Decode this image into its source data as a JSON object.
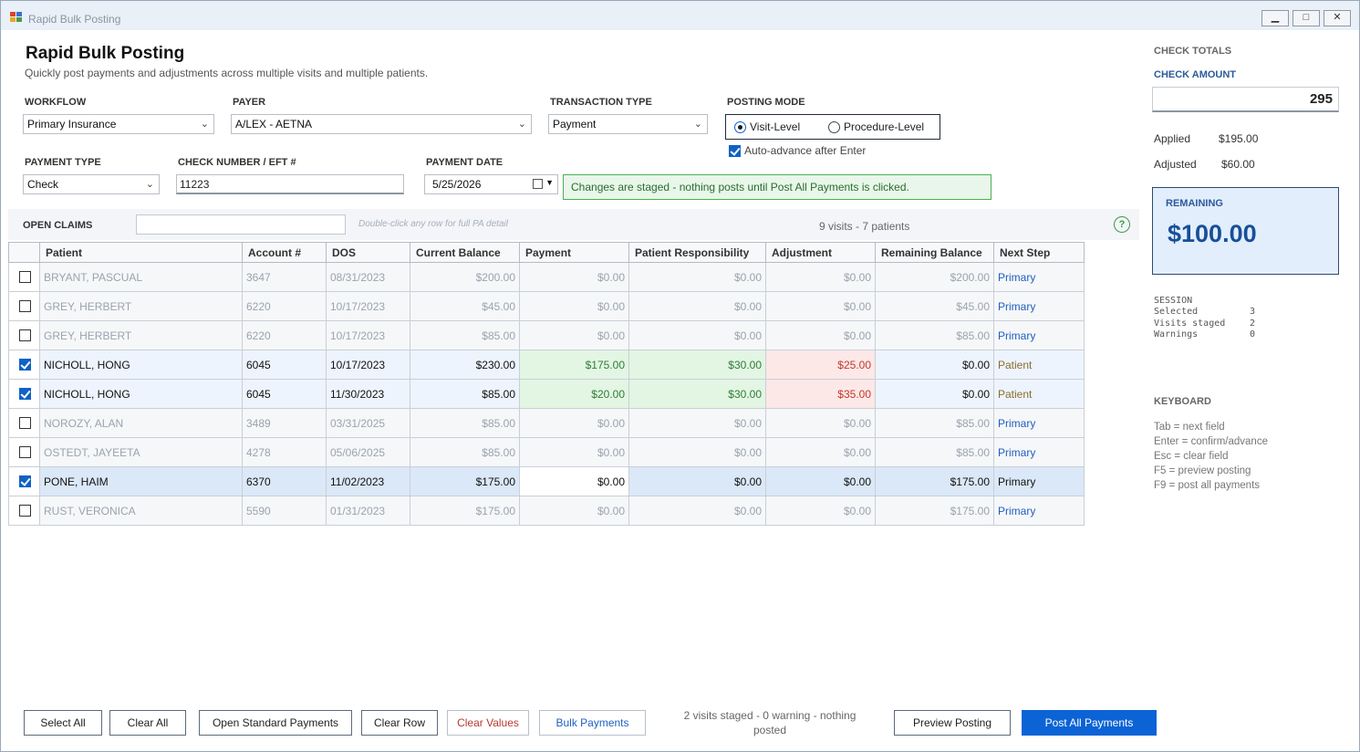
{
  "window": {
    "title": "Rapid Bulk Posting",
    "controls": [
      "▁",
      "□",
      "✕"
    ]
  },
  "header": {
    "title": "Rapid Bulk Posting",
    "subtitle": "Quickly post payments and adjustments across multiple visits and multiple patients."
  },
  "form": {
    "workflow": {
      "label": "WORKFLOW",
      "value": "Primary Insurance"
    },
    "payer": {
      "label": "PAYER",
      "value": "A/LEX - AETNA"
    },
    "transaction_type": {
      "label": "TRANSACTION TYPE",
      "value": "Payment"
    },
    "posting_mode": {
      "label": "POSTING MODE",
      "options": [
        "Visit-Level",
        "Procedure-Level"
      ],
      "selected": "Visit-Level"
    },
    "auto_advance": {
      "label": "Auto-advance after Enter",
      "checked": true
    },
    "payment_type": {
      "label": "PAYMENT TYPE",
      "value": "Check"
    },
    "check_number": {
      "label": "CHECK NUMBER / EFT #",
      "value": "11223"
    },
    "payment_date": {
      "label": "PAYMENT DATE",
      "value": "5/25/2026"
    },
    "notice": "Changes are staged - nothing posts until Post All Payments is clicked."
  },
  "claims": {
    "label": "OPEN CLAIMS",
    "filter_value": "",
    "hint": "Double-click any row for full PA detail",
    "count": "9 visits - 7 patients",
    "help_icon": "?",
    "columns": [
      "Patient",
      "Account #",
      "DOS",
      "Current Balance",
      "Payment",
      "Patient Responsibility",
      "Adjustment",
      "Remaining Balance",
      "Next Step"
    ],
    "rows": [
      {
        "checked": false,
        "state": "muted",
        "patient": "BRYANT, PASCUAL",
        "account": "3647",
        "dos": "08/31/2023",
        "balance": "$200.00",
        "payment": "$0.00",
        "responsibility": "$0.00",
        "adjustment": "$0.00",
        "remaining": "$200.00",
        "next": "Primary"
      },
      {
        "checked": false,
        "state": "muted",
        "patient": "GREY, HERBERT",
        "account": "6220",
        "dos": "10/17/2023",
        "balance": "$45.00",
        "payment": "$0.00",
        "responsibility": "$0.00",
        "adjustment": "$0.00",
        "remaining": "$45.00",
        "next": "Primary"
      },
      {
        "checked": false,
        "state": "muted",
        "patient": "GREY, HERBERT",
        "account": "6220",
        "dos": "10/17/2023",
        "balance": "$85.00",
        "payment": "$0.00",
        "responsibility": "$0.00",
        "adjustment": "$0.00",
        "remaining": "$85.00",
        "next": "Primary"
      },
      {
        "checked": true,
        "state": "sel",
        "patient": "NICHOLL, HONG",
        "account": "6045",
        "dos": "10/17/2023",
        "balance": "$230.00",
        "payment": "$175.00",
        "responsibility": "$30.00",
        "adjustment": "$25.00",
        "remaining": "$0.00",
        "next": "Patient"
      },
      {
        "checked": true,
        "state": "sel",
        "patient": "NICHOLL, HONG",
        "account": "6045",
        "dos": "11/30/2023",
        "balance": "$85.00",
        "payment": "$20.00",
        "responsibility": "$30.00",
        "adjustment": "$35.00",
        "remaining": "$0.00",
        "next": "Patient"
      },
      {
        "checked": false,
        "state": "muted",
        "patient": "NOROZY, ALAN",
        "account": "3489",
        "dos": "03/31/2025",
        "balance": "$85.00",
        "payment": "$0.00",
        "responsibility": "$0.00",
        "adjustment": "$0.00",
        "remaining": "$85.00",
        "next": "Primary"
      },
      {
        "checked": false,
        "state": "muted",
        "patient": "OSTEDT, JAYEETA",
        "account": "4278",
        "dos": "05/06/2025",
        "balance": "$85.00",
        "payment": "$0.00",
        "responsibility": "$0.00",
        "adjustment": "$0.00",
        "remaining": "$85.00",
        "next": "Primary"
      },
      {
        "checked": true,
        "state": "hl",
        "patient": "PONE, HAIM",
        "account": "6370",
        "dos": "11/02/2023",
        "balance": "$175.00",
        "payment": "$0.00",
        "responsibility": "$0.00",
        "adjustment": "$0.00",
        "remaining": "$175.00",
        "next": "Primary"
      },
      {
        "checked": false,
        "state": "muted",
        "patient": "RUST, VERONICA",
        "account": "5590",
        "dos": "01/31/2023",
        "balance": "$175.00",
        "payment": "$0.00",
        "responsibility": "$0.00",
        "adjustment": "$0.00",
        "remaining": "$175.00",
        "next": "Primary"
      }
    ]
  },
  "totals": {
    "section": "CHECK TOTALS",
    "check_amount_label": "CHECK AMOUNT",
    "check_amount": "295",
    "applied_label": "Applied",
    "applied": "$195.00",
    "adjusted_label": "Adjusted",
    "adjusted": "$60.00",
    "remaining_label": "REMAINING",
    "remaining": "$100.00"
  },
  "session": {
    "title": "SESSION",
    "items": [
      {
        "label": "Selected",
        "value": "3"
      },
      {
        "label": "Visits staged",
        "value": "2"
      },
      {
        "label": "Warnings",
        "value": "0"
      }
    ]
  },
  "keyboard": {
    "title": "KEYBOARD",
    "items": [
      "Tab = next field",
      "Enter = confirm/advance",
      "Esc = clear field",
      "F5 = preview posting",
      "F9 = post all payments"
    ]
  },
  "footer": {
    "select_all": "Select All",
    "clear_all": "Clear All",
    "open_standard": "Open Standard Payments",
    "clear_row": "Clear Row",
    "clear_values": "Clear Values",
    "bulk_payments": "Bulk Payments",
    "status": "2 visits staged - 0 warning - nothing posted",
    "preview": "Preview Posting",
    "post_all": "Post All Payments"
  },
  "colors": {
    "accent": "#0b63d6",
    "staged_green": "#2f7d34",
    "adjust_red": "#c0392b",
    "remaining_bg": "#e2eefc"
  }
}
